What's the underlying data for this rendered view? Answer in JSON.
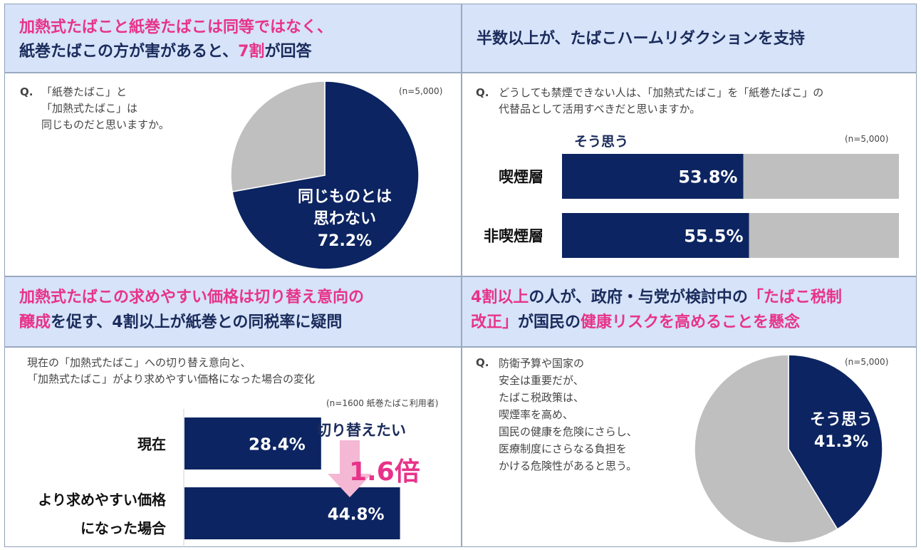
{
  "panel1": {
    "title_line1": "加熱式たばこと紙巻たばこは同等ではなく、",
    "title_line2_a": "紙巻たばこの方が害があると、",
    "title_line2_b": "7割",
    "title_line2_c": "が回答",
    "q_mark": "Q.",
    "question_lines": [
      "「紙巻たばこ」と",
      "「加熱式たばこ」は",
      "同じものだと思いますか。"
    ],
    "n_note": "(n=5,000)"
  },
  "panel2": {
    "title": "半数以上が、たばこハームリダクションを支持",
    "q_mark": "Q.",
    "question_lines": [
      "どうしても禁煙できない人は、「加熱式たばこ」を「紙巻たばこ」の",
      "代替品として活用すべきだと思いますか。"
    ],
    "legend_label": "そう思う",
    "n_note": "(n=5,000)"
  },
  "panel3": {
    "title_line1": "加熱式たばこの求めやすい価格は切り替え意向の",
    "title_line2_a": "醸成",
    "title_line2_b": "を促す、4割以上が紙巻との同税率に疑問",
    "question_lines": [
      "現在の「加熱式たばこ」への切り替え意向と、",
      "「加熱式たばこ」がより求めやすい価格になった場合の変化"
    ],
    "n_note": "(n=1600 紙巻たばこ利用者)",
    "annotation_title": "切り替えたい",
    "annotation_multiplier": "1.6倍"
  },
  "panel4": {
    "title_line1_a": "4割以上",
    "title_line1_b": "の人が、政府・与党が検討中の",
    "title_line1_c": "「たばこ税制",
    "title_line2_a": "改正」",
    "title_line2_b": "が国民の",
    "title_line2_c": "健康リスクを高めることを懸念",
    "q_mark": "Q.",
    "question_lines": [
      "防衛予算や国家の",
      "安全は重要だが、",
      "たばこ税政策は、",
      "喫煙率を高め、",
      "国民の健康を危険にさらし、",
      "医療制度にさらなる負担を",
      "かける危険性があると思う。"
    ],
    "n_note": "(n=5,000)"
  },
  "colors": {
    "navy": "#0c2461",
    "gray": "#bfbfbf",
    "pink": "#e8338a",
    "light_pink": "#f4b8d4",
    "header_bg": "#d6e3f8"
  },
  "chart_data": [
    {
      "type": "pie",
      "title": "「紙巻たばこ」と「加熱式たばこ」は同じものだと思いますか。",
      "slices": [
        {
          "label_lines": [
            "同じものとは",
            "思わない"
          ],
          "value": 72.2,
          "value_label": "72.2%",
          "color": "#0c2461"
        },
        {
          "label_lines": [],
          "value": 27.8,
          "value_label": "",
          "color": "#bfbfbf"
        }
      ],
      "start": "12 o'clock",
      "direction": "clockwise"
    },
    {
      "type": "bar",
      "orientation": "horizontal",
      "stacked_to": 100,
      "categories": [
        "喫煙層",
        "非喫煙層"
      ],
      "series": [
        {
          "name": "そう思う",
          "values": [
            53.8,
            55.5
          ],
          "value_labels": [
            "53.8%",
            "55.5%"
          ]
        }
      ],
      "xlim": [
        0,
        100
      ]
    },
    {
      "type": "bar",
      "orientation": "horizontal",
      "categories": [
        [
          "現在"
        ],
        [
          "より求めやすい価格",
          "になった場合"
        ]
      ],
      "series": [
        {
          "name": "切り替えたい",
          "values": [
            28.4,
            44.8
          ],
          "value_labels": [
            "28.4%",
            "44.8%"
          ]
        }
      ],
      "xlim": [
        0,
        57
      ]
    },
    {
      "type": "pie",
      "slices": [
        {
          "label_lines": [
            "そう思う"
          ],
          "value": 41.3,
          "value_label": "41.3%",
          "color": "#0c2461"
        },
        {
          "label_lines": [],
          "value": 58.7,
          "value_label": "",
          "color": "#bfbfbf"
        }
      ],
      "start": "12 o'clock",
      "direction": "clockwise"
    }
  ]
}
